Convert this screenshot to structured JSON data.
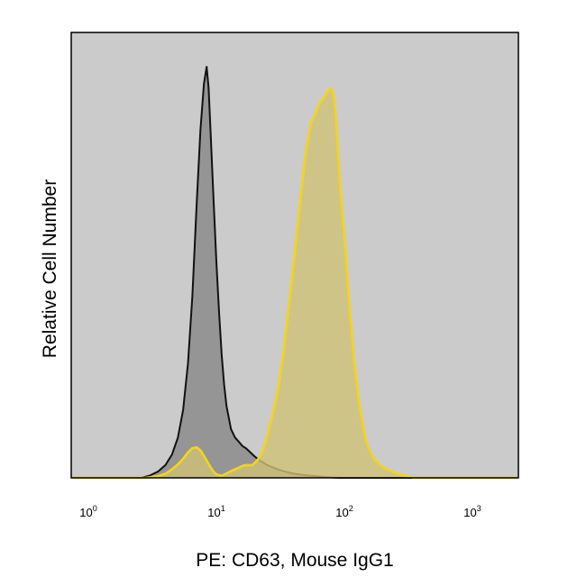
{
  "chart_data": {
    "type": "area",
    "title": "",
    "xlabel": "PE: CD63, Mouse IgG1",
    "ylabel": "Relative Cell Number",
    "x_scale": "log10",
    "xlim": [
      1,
      2500
    ],
    "ylim": [
      0,
      1
    ],
    "grid": false,
    "legend": "none",
    "plot_background": "#cbcbcb",
    "x_ticks": [
      {
        "base": "10",
        "exp": "0",
        "value": 1
      },
      {
        "base": "10",
        "exp": "1",
        "value": 10
      },
      {
        "base": "10",
        "exp": "2",
        "value": 100
      },
      {
        "base": "10",
        "exp": "3",
        "value": 1000
      }
    ],
    "series": [
      {
        "stroke": "#111111",
        "fill": "#8c8c8c",
        "fill_opacity": 0.85,
        "points": [
          [
            2.6,
            0.0
          ],
          [
            3.0,
            0.005
          ],
          [
            3.5,
            0.015
          ],
          [
            4.0,
            0.03
          ],
          [
            4.5,
            0.055
          ],
          [
            5.0,
            0.095
          ],
          [
            5.5,
            0.16
          ],
          [
            6.0,
            0.27
          ],
          [
            6.5,
            0.43
          ],
          [
            7.0,
            0.64
          ],
          [
            7.5,
            0.82
          ],
          [
            8.0,
            0.93
          ],
          [
            8.4,
            0.97
          ],
          [
            8.7,
            0.92
          ],
          [
            9.0,
            0.82
          ],
          [
            9.5,
            0.66
          ],
          [
            10.0,
            0.51
          ],
          [
            10.5,
            0.39
          ],
          [
            11.0,
            0.29
          ],
          [
            11.5,
            0.22
          ],
          [
            12.0,
            0.17
          ],
          [
            13.0,
            0.115
          ],
          [
            14.0,
            0.095
          ],
          [
            15.0,
            0.085
          ],
          [
            16.0,
            0.075
          ],
          [
            17.0,
            0.07
          ],
          [
            18.0,
            0.063
          ],
          [
            20.0,
            0.05
          ],
          [
            22.0,
            0.04
          ],
          [
            25.0,
            0.03
          ],
          [
            30.0,
            0.02
          ],
          [
            35.0,
            0.014
          ],
          [
            40.0,
            0.01
          ],
          [
            50.0,
            0.006
          ],
          [
            60.0,
            0.004
          ],
          [
            70.0,
            0.002
          ],
          [
            90.0,
            0.0
          ]
        ]
      },
      {
        "stroke": "#f4d41a",
        "fill": "#cfc277",
        "fill_opacity": 0.8,
        "points": [
          [
            2.8,
            0.0
          ],
          [
            3.5,
            0.004
          ],
          [
            4.0,
            0.01
          ],
          [
            4.5,
            0.02
          ],
          [
            5.0,
            0.032
          ],
          [
            5.5,
            0.045
          ],
          [
            6.0,
            0.06
          ],
          [
            6.5,
            0.07
          ],
          [
            7.0,
            0.072
          ],
          [
            7.5,
            0.065
          ],
          [
            8.0,
            0.052
          ],
          [
            8.5,
            0.038
          ],
          [
            9.0,
            0.025
          ],
          [
            9.5,
            0.015
          ],
          [
            10.0,
            0.008
          ],
          [
            11.0,
            0.005
          ],
          [
            12.0,
            0.01
          ],
          [
            13.0,
            0.016
          ],
          [
            14.0,
            0.02
          ],
          [
            15.0,
            0.024
          ],
          [
            16.0,
            0.028
          ],
          [
            17.0,
            0.03
          ],
          [
            18.0,
            0.03
          ],
          [
            19.0,
            0.03
          ],
          [
            20.0,
            0.035
          ],
          [
            22.0,
            0.05
          ],
          [
            24.0,
            0.08
          ],
          [
            26.0,
            0.12
          ],
          [
            28.0,
            0.16
          ],
          [
            30.0,
            0.2
          ],
          [
            33.0,
            0.28
          ],
          [
            36.0,
            0.38
          ],
          [
            40.0,
            0.5
          ],
          [
            45.0,
            0.65
          ],
          [
            50.0,
            0.77
          ],
          [
            55.0,
            0.84
          ],
          [
            60.0,
            0.86
          ],
          [
            63.0,
            0.88
          ],
          [
            66.0,
            0.89
          ],
          [
            70.0,
            0.9
          ],
          [
            74.0,
            0.91
          ],
          [
            78.0,
            0.92
          ],
          [
            82.0,
            0.91
          ],
          [
            86.0,
            0.85
          ],
          [
            90.0,
            0.75
          ],
          [
            95.0,
            0.65
          ],
          [
            100.0,
            0.57
          ],
          [
            110.0,
            0.4
          ],
          [
            120.0,
            0.27
          ],
          [
            130.0,
            0.18
          ],
          [
            140.0,
            0.12
          ],
          [
            150.0,
            0.08
          ],
          [
            170.0,
            0.045
          ],
          [
            200.0,
            0.025
          ],
          [
            250.0,
            0.012
          ],
          [
            300.0,
            0.005
          ],
          [
            350.0,
            0.0
          ]
        ]
      }
    ]
  }
}
